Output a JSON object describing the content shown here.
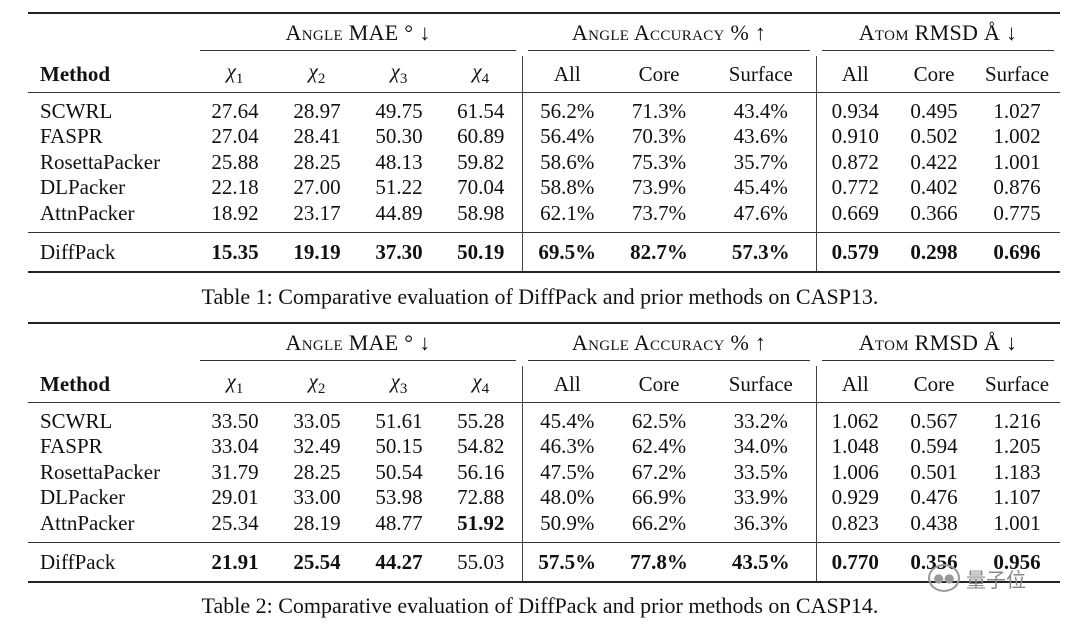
{
  "group_headers": {
    "angle_mae": "Angle MAE ° ↓",
    "angle_accuracy": "Angle Accuracy % ↑",
    "atom_rmsd": "Atom RMSD Å ↓"
  },
  "column_headers": {
    "method": "Method",
    "chi_symbol": "χ",
    "chi1": "1",
    "chi2": "2",
    "chi3": "3",
    "chi4": "4",
    "acc_all": "All",
    "acc_core": "Core",
    "acc_surface": "Surface",
    "rmsd_all": "All",
    "rmsd_core": "Core",
    "rmsd_surface": "Surface"
  },
  "table1": {
    "caption": "Table 1: Comparative evaluation of DiffPack and prior methods on CASP13.",
    "rows": [
      {
        "method": "SCWRL",
        "chi1": "27.64",
        "chi2": "28.97",
        "chi3": "49.75",
        "chi4": "61.54",
        "acc_all": "56.2%",
        "acc_core": "71.3%",
        "acc_surface": "43.4%",
        "rmsd_all": "0.934",
        "rmsd_core": "0.495",
        "rmsd_surface": "1.027"
      },
      {
        "method": "FASPR",
        "chi1": "27.04",
        "chi2": "28.41",
        "chi3": "50.30",
        "chi4": "60.89",
        "acc_all": "56.4%",
        "acc_core": "70.3%",
        "acc_surface": "43.6%",
        "rmsd_all": "0.910",
        "rmsd_core": "0.502",
        "rmsd_surface": "1.002"
      },
      {
        "method": "RosettaPacker",
        "chi1": "25.88",
        "chi2": "28.25",
        "chi3": "48.13",
        "chi4": "59.82",
        "acc_all": "58.6%",
        "acc_core": "75.3%",
        "acc_surface": "35.7%",
        "rmsd_all": "0.872",
        "rmsd_core": "0.422",
        "rmsd_surface": "1.001"
      },
      {
        "method": "DLPacker",
        "chi1": "22.18",
        "chi2": "27.00",
        "chi3": "51.22",
        "chi4": "70.04",
        "acc_all": "58.8%",
        "acc_core": "73.9%",
        "acc_surface": "45.4%",
        "rmsd_all": "0.772",
        "rmsd_core": "0.402",
        "rmsd_surface": "0.876"
      },
      {
        "method": "AttnPacker",
        "chi1": "18.92",
        "chi2": "23.17",
        "chi3": "44.89",
        "chi4": "58.98",
        "acc_all": "62.1%",
        "acc_core": "73.7%",
        "acc_surface": "47.6%",
        "rmsd_all": "0.669",
        "rmsd_core": "0.366",
        "rmsd_surface": "0.775"
      }
    ],
    "diffpack": {
      "method": "DiffPack",
      "chi1": "15.35",
      "chi2": "19.19",
      "chi3": "37.30",
      "chi4": "50.19",
      "acc_all": "69.5%",
      "acc_core": "82.7%",
      "acc_surface": "57.3%",
      "rmsd_all": "0.579",
      "rmsd_core": "0.298",
      "rmsd_surface": "0.696"
    }
  },
  "table2": {
    "caption": "Table 2: Comparative evaluation of DiffPack and prior methods on CASP14.",
    "rows": [
      {
        "method": "SCWRL",
        "chi1": "33.50",
        "chi2": "33.05",
        "chi3": "51.61",
        "chi4": "55.28",
        "acc_all": "45.4%",
        "acc_core": "62.5%",
        "acc_surface": "33.2%",
        "rmsd_all": "1.062",
        "rmsd_core": "0.567",
        "rmsd_surface": "1.216"
      },
      {
        "method": "FASPR",
        "chi1": "33.04",
        "chi2": "32.49",
        "chi3": "50.15",
        "chi4": "54.82",
        "acc_all": "46.3%",
        "acc_core": "62.4%",
        "acc_surface": "34.0%",
        "rmsd_all": "1.048",
        "rmsd_core": "0.594",
        "rmsd_surface": "1.205"
      },
      {
        "method": "RosettaPacker",
        "chi1": "31.79",
        "chi2": "28.25",
        "chi3": "50.54",
        "chi4": "56.16",
        "acc_all": "47.5%",
        "acc_core": "67.2%",
        "acc_surface": "33.5%",
        "rmsd_all": "1.006",
        "rmsd_core": "0.501",
        "rmsd_surface": "1.183"
      },
      {
        "method": "DLPacker",
        "chi1": "29.01",
        "chi2": "33.00",
        "chi3": "53.98",
        "chi4": "72.88",
        "acc_all": "48.0%",
        "acc_core": "66.9%",
        "acc_surface": "33.9%",
        "rmsd_all": "0.929",
        "rmsd_core": "0.476",
        "rmsd_surface": "1.107"
      },
      {
        "method": "AttnPacker",
        "chi1": "25.34",
        "chi2": "28.19",
        "chi3": "48.77",
        "chi4": "51.92",
        "acc_all": "50.9%",
        "acc_core": "66.2%",
        "acc_surface": "36.3%",
        "rmsd_all": "0.823",
        "rmsd_core": "0.438",
        "rmsd_surface": "1.001"
      }
    ],
    "diffpack": {
      "method": "DiffPack",
      "chi1": "21.91",
      "chi2": "25.54",
      "chi3": "44.27",
      "chi4": "55.03",
      "acc_all": "57.5%",
      "acc_core": "77.8%",
      "acc_surface": "43.5%",
      "rmsd_all": "0.770",
      "rmsd_core": "0.356",
      "rmsd_surface": "0.956"
    }
  },
  "watermark": {
    "icon": "wechat-icon",
    "text": "量子位"
  }
}
